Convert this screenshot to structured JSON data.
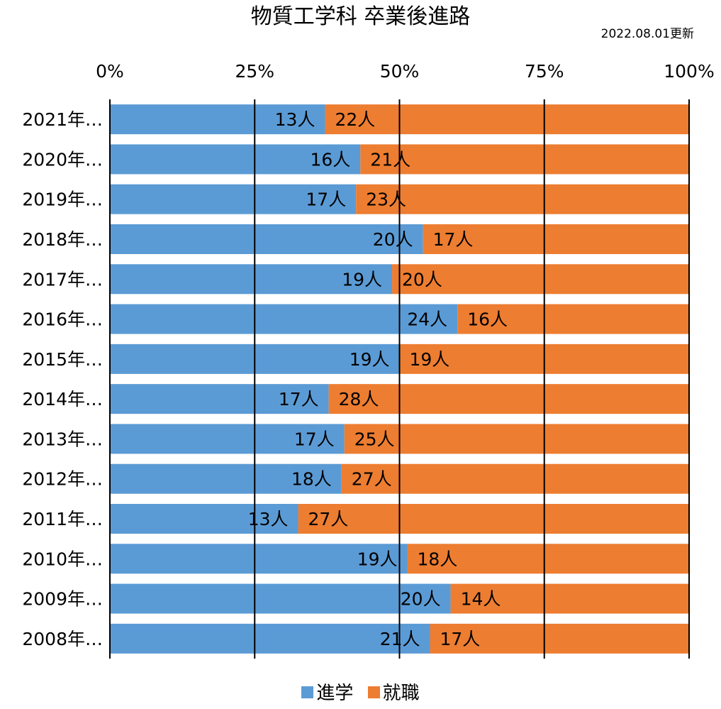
{
  "title": "物質工学科 卒業後進路",
  "updated": "2022.08.01更新",
  "colors": {
    "進学": "#5B9BD5",
    "就職": "#ED7D31",
    "grid": "#000000"
  },
  "chart_data": {
    "type": "bar",
    "orientation": "horizontal",
    "stacked": "percent",
    "categories": [
      "2021年…",
      "2020年…",
      "2019年…",
      "2018年…",
      "2017年…",
      "2016年…",
      "2015年…",
      "2014年…",
      "2013年…",
      "2012年…",
      "2011年…",
      "2010年…",
      "2009年…",
      "2008年…"
    ],
    "series": [
      {
        "name": "進学",
        "values": [
          13,
          16,
          17,
          20,
          19,
          24,
          19,
          17,
          17,
          18,
          13,
          19,
          20,
          21
        ],
        "labels": [
          "13人",
          "16人",
          "17人",
          "20人",
          "19人",
          "24人",
          "19人",
          "17人",
          "17人",
          "18人",
          "13人",
          "19人",
          "20人",
          "21人"
        ]
      },
      {
        "name": "就職",
        "values": [
          22,
          21,
          23,
          17,
          20,
          16,
          19,
          28,
          25,
          27,
          27,
          18,
          14,
          17
        ],
        "labels": [
          "22人",
          "21人",
          "23人",
          "17人",
          "20人",
          "16人",
          "19人",
          "28人",
          "25人",
          "27人",
          "27人",
          "18人",
          "14人",
          "17人"
        ]
      }
    ],
    "x_ticks": [
      "0%",
      "25%",
      "50%",
      "75%",
      "100%"
    ],
    "xlim": [
      0,
      100
    ],
    "axis_position": "top",
    "grid": true,
    "legend": "bottom"
  }
}
